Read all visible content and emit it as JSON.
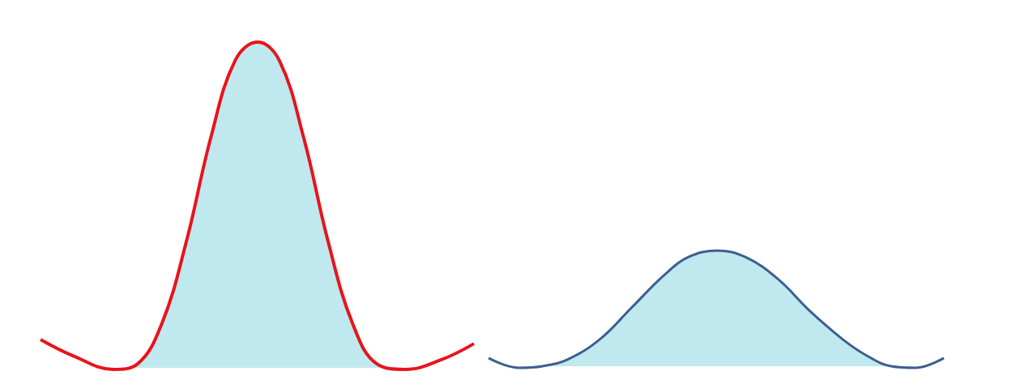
{
  "chart_data": [
    {
      "type": "line",
      "color": "#e8141b",
      "tick_labels": false,
      "grid": false,
      "xlim": [
        0,
        100
      ],
      "ylim": [
        -0.02,
        1
      ],
      "x": [
        0,
        7.5,
        16.8,
        22.4,
        28.0,
        33.6,
        39.3,
        44.9,
        50.1,
        55.1,
        60.7,
        66.4,
        72.0,
        77.6,
        84.1,
        92.5,
        100
      ],
      "values": [
        0.087,
        0.037,
        -0.005,
        0.012,
        0.136,
        0.385,
        0.707,
        0.943,
        1.0,
        0.943,
        0.707,
        0.385,
        0.136,
        0.012,
        -0.005,
        0.025,
        0.074
      ]
    },
    {
      "type": "line",
      "color": "#3d5f8f",
      "tick_labels": false,
      "grid": false,
      "xlim": [
        0,
        100
      ],
      "ylim": [
        -0.02,
        1
      ],
      "x": [
        0,
        6.6,
        11.9,
        17.3,
        24.4,
        31.5,
        38.6,
        43.9,
        50.2,
        56.4,
        63.5,
        70.6,
        77.8,
        83.1,
        88.4,
        93.8,
        100
      ],
      "values": [
        0.025,
        -0.005,
        0,
        0.02,
        0.082,
        0.181,
        0.28,
        0.335,
        0.355,
        0.335,
        0.268,
        0.169,
        0.082,
        0.032,
        0,
        -0.005,
        0.025
      ]
    }
  ]
}
